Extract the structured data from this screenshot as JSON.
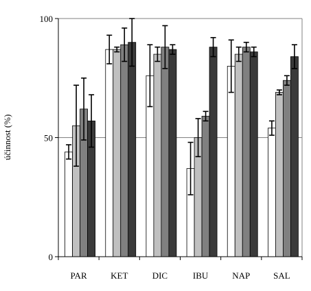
{
  "chart_data": {
    "type": "bar",
    "title": "",
    "xlabel": "",
    "ylabel": "účinnost (%)",
    "ylim": [
      0,
      100
    ],
    "yticks": [
      0,
      50,
      100
    ],
    "grid": true,
    "legend": "none",
    "categories": [
      "PAR",
      "KET",
      "DIC",
      "IBU",
      "NAP",
      "SAL"
    ],
    "series": [
      {
        "color": "#ffffff",
        "values": [
          44,
          87,
          76,
          37,
          80,
          54
        ],
        "errors": [
          3,
          6,
          13,
          11,
          11,
          3
        ]
      },
      {
        "color": "#c0c0c0",
        "values": [
          55,
          87,
          85,
          50,
          85,
          69
        ],
        "errors": [
          17,
          1,
          3,
          8,
          3,
          1
        ]
      },
      {
        "color": "#808080",
        "values": [
          62,
          89,
          88,
          59,
          88,
          74
        ],
        "errors": [
          13,
          7,
          9,
          2,
          2,
          2
        ]
      },
      {
        "color": "#3a3a3a",
        "values": [
          57,
          90,
          87,
          88,
          86,
          84
        ],
        "errors": [
          11,
          10,
          2,
          4,
          2,
          5
        ]
      }
    ]
  }
}
